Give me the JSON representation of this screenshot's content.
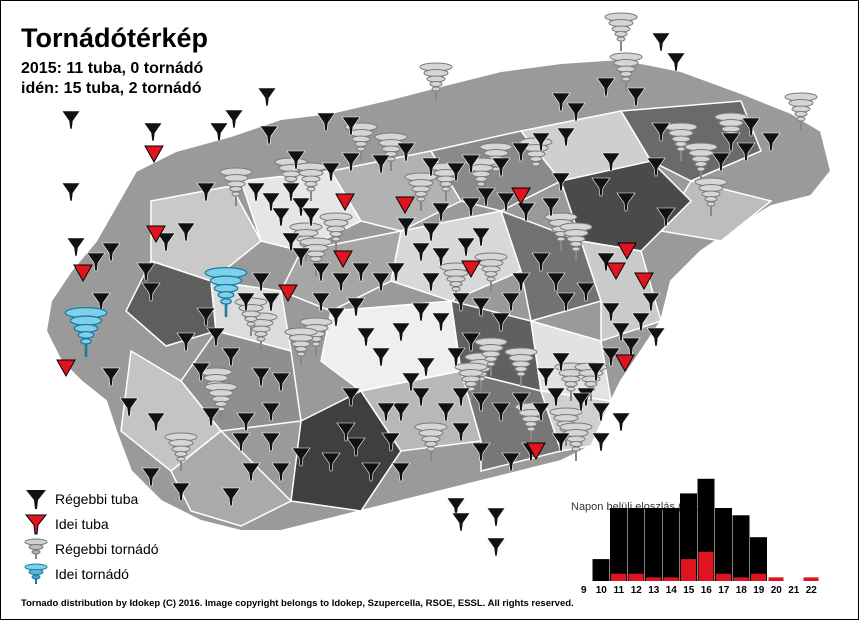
{
  "header": {
    "title": "Tornádótérkép",
    "line1": "2015: 11 tuba, 0 tornádó",
    "line2": "idén: 15 tuba, 2 tornádó"
  },
  "legend": [
    {
      "label": "Régebbi tuba",
      "icon": "old-tube-icon",
      "color": "#111111"
    },
    {
      "label": "Idei tuba",
      "icon": "this-year-tube-icon",
      "color": "#e0141e"
    },
    {
      "label": "Régebbi tornádó",
      "icon": "old-tornado-icon",
      "color": "#a8a8a8"
    },
    {
      "label": "Idei tornádó",
      "icon": "this-year-tornado-icon",
      "color": "#2a9fc8"
    }
  ],
  "credit": "Tornado distribution by Idokep (C) 2016. Image copyright belongs to Idokep, Szupercella, RSOE, ESSL. All rights reserved.",
  "chart_data": {
    "type": "bar",
    "title": "Napon belüli eloszlás (óra)",
    "categories": [
      "9",
      "10",
      "11",
      "12",
      "13",
      "14",
      "15",
      "16",
      "17",
      "18",
      "19",
      "20",
      "21",
      "22"
    ],
    "series": [
      {
        "name": "Régebbi",
        "values": [
          0,
          3,
          10,
          10,
          10,
          10,
          12,
          14,
          10,
          9,
          6,
          0,
          0,
          0
        ],
        "color": "#000000"
      },
      {
        "name": "Idei",
        "values": [
          0,
          0,
          1,
          1,
          0.5,
          0.5,
          3,
          4,
          1,
          0.5,
          1,
          0.5,
          0,
          0.5
        ],
        "color": "#e0141e"
      }
    ]
  }
}
